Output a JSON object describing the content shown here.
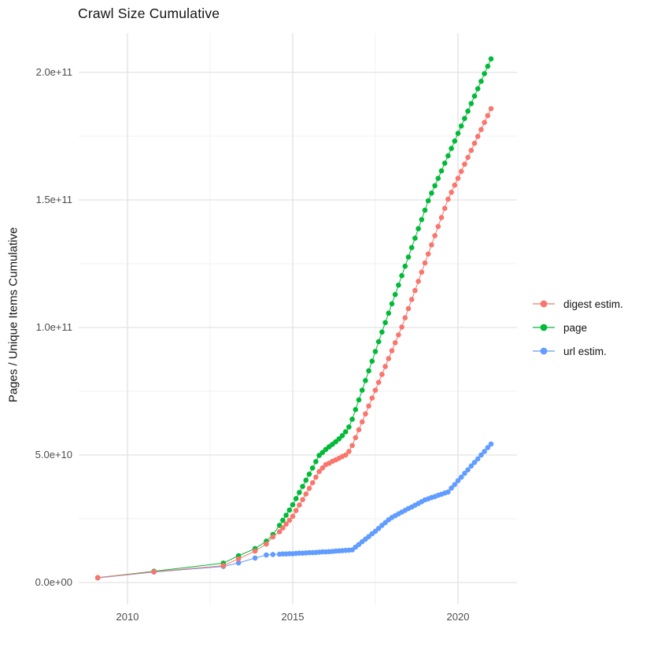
{
  "title": "Crawl Size Cumulative",
  "y_axis_title": "Pages / Unique Items Cumulative",
  "chart_data": {
    "type": "scatter",
    "title": "Crawl Size Cumulative",
    "xlabel": "",
    "ylabel": "Pages / Unique Items Cumulative",
    "x_tick_labels": [
      "2010",
      "2015",
      "2020"
    ],
    "y_tick_labels": [
      "2.0e+11",
      "1.5e+11",
      "1.0e+11",
      "5.0e+10",
      "0.0e+00"
    ],
    "x_tick_years": [
      2010,
      2015,
      2020
    ],
    "x_minor_years": [
      2012.5,
      2017.5
    ],
    "y_tick_values_e9": [
      0,
      50,
      100,
      150,
      200
    ],
    "y_minor_values_e9": [
      25,
      75,
      125,
      175
    ],
    "values_unit": "pages, value = listed number x 1e9",
    "xlim": [
      2008.5,
      2021.8
    ],
    "ylim_e9": [
      0,
      215
    ],
    "grid": true,
    "legend_position": "right",
    "x": [
      2009.1,
      2010.8,
      2012.9,
      2013.36,
      2013.86,
      2014.2,
      2014.4,
      2014.6,
      2014.7,
      2014.8,
      2014.9,
      2015.0,
      2015.1,
      2015.2,
      2015.3,
      2015.4,
      2015.5,
      2015.6,
      2015.7,
      2015.8,
      2015.9,
      2016.0,
      2016.1,
      2016.2,
      2016.3,
      2016.4,
      2016.5,
      2016.6,
      2016.7,
      2016.8,
      2016.9,
      2017.0,
      2017.1,
      2017.2,
      2017.3,
      2017.4,
      2017.5,
      2017.6,
      2017.7,
      2017.8,
      2017.9,
      2018.0,
      2018.1,
      2018.2,
      2018.3,
      2018.4,
      2018.5,
      2018.6,
      2018.7,
      2018.8,
      2018.9,
      2019.0,
      2019.1,
      2019.2,
      2019.3,
      2019.4,
      2019.5,
      2019.6,
      2019.7,
      2019.8,
      2019.9,
      2020.0,
      2020.1,
      2020.2,
      2020.3,
      2020.4,
      2020.5,
      2020.6,
      2020.7,
      2020.8,
      2020.9,
      2021.0
    ],
    "series": [
      {
        "name": "digest estim.",
        "color": "#F8766D",
        "values_e9": [
          1.9,
          4.2,
          6.6,
          9.3,
          12.3,
          15.1,
          17.9,
          19.9,
          21.4,
          22.9,
          24.4,
          26.0,
          28.2,
          30.4,
          32.5,
          34.7,
          36.9,
          39.1,
          41.3,
          43.5,
          44.9,
          46.2,
          46.8,
          47.5,
          48.1,
          48.7,
          49.4,
          50.0,
          51.4,
          53.7,
          56.8,
          59.9,
          63.0,
          66.1,
          69.2,
          72.3,
          75.4,
          78.5,
          81.6,
          84.7,
          87.8,
          90.9,
          94.0,
          97.1,
          100.2,
          103.8,
          107.4,
          111.0,
          114.5,
          118.1,
          121.7,
          125.3,
          128.8,
          132.4,
          136.0,
          139.6,
          143.1,
          146.7,
          150.3,
          153.0,
          155.8,
          158.5,
          161.2,
          164.0,
          166.7,
          169.4,
          172.2,
          174.9,
          177.6,
          180.4,
          183.1,
          185.8
        ]
      },
      {
        "name": "page",
        "color": "#00BA38",
        "values_e9": [
          1.9,
          4.4,
          7.6,
          10.5,
          13.3,
          16.2,
          18.8,
          22.4,
          24.4,
          26.4,
          28.4,
          30.5,
          32.9,
          35.3,
          37.7,
          40.1,
          42.5,
          44.9,
          47.4,
          49.8,
          51.0,
          52.2,
          53.2,
          54.2,
          55.2,
          56.3,
          57.6,
          59.1,
          61.0,
          64.0,
          67.8,
          71.6,
          75.4,
          79.2,
          83.0,
          86.8,
          90.6,
          94.4,
          98.2,
          101.9,
          105.6,
          109.3,
          112.9,
          116.6,
          120.3,
          124.0,
          127.6,
          131.3,
          135.0,
          138.7,
          142.3,
          146.0,
          149.7,
          152.7,
          155.6,
          158.5,
          161.4,
          164.4,
          167.3,
          170.2,
          173.1,
          176.1,
          179.0,
          181.9,
          184.8,
          187.8,
          190.7,
          193.6,
          196.5,
          199.5,
          202.4,
          205.3
        ]
      },
      {
        "name": "url estim.",
        "color": "#619CFF",
        "values_e9": [
          1.8,
          4.1,
          6.3,
          7.7,
          9.6,
          10.8,
          11.0,
          11.1,
          11.2,
          11.2,
          11.3,
          11.3,
          11.4,
          11.5,
          11.5,
          11.6,
          11.7,
          11.7,
          11.8,
          11.9,
          12.0,
          12.0,
          12.1,
          12.2,
          12.3,
          12.4,
          12.5,
          12.6,
          12.7,
          12.8,
          13.9,
          14.9,
          16.0,
          17.0,
          18.0,
          19.1,
          20.1,
          21.2,
          22.4,
          23.5,
          24.6,
          25.5,
          26.2,
          26.9,
          27.6,
          28.3,
          29.0,
          29.6,
          30.3,
          31.0,
          31.7,
          32.4,
          32.8,
          33.3,
          33.7,
          34.2,
          34.6,
          35.1,
          35.5,
          37.0,
          38.4,
          39.9,
          41.3,
          42.8,
          44.2,
          45.7,
          47.1,
          48.5,
          50.0,
          51.4,
          52.9,
          54.3
        ]
      }
    ]
  }
}
